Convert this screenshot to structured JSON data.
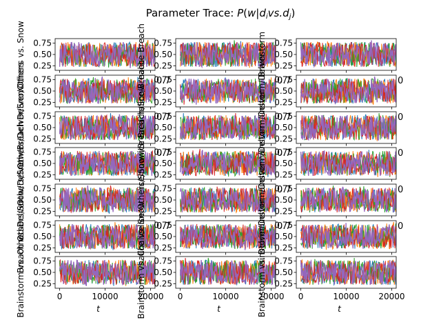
{
  "title": "Parameter Trace: P(w | d_i vs. d_j)",
  "title_parts": {
    "prefix": "Parameter Trace: ",
    "P": "P",
    "open": "(",
    "w": "w",
    "bar": "|",
    "d": "d",
    "i": "i",
    "vs": "vs.",
    "d2": "d",
    "j": "j",
    "close": ")"
  },
  "colors": {
    "series": [
      "#1f77b4",
      "#ff7f0e",
      "#2ca02c",
      "#d62728",
      "#9467bd"
    ],
    "axis": "#000000",
    "background": "#ffffff"
  },
  "chart_data": {
    "type": "line",
    "layout": "7x3 grid of subplots",
    "xlabel": "t",
    "xlim": [
      -1000,
      21000
    ],
    "ylim": [
      0.15,
      0.85
    ],
    "x_ticks": [
      0,
      10000,
      20000
    ],
    "y_ticks": [
      0.25,
      0.5,
      0.75
    ],
    "x_tick_labels": [
      "0",
      "10000",
      "20000"
    ],
    "y_tick_labels": [
      "0.25",
      "0.50",
      "0.75"
    ],
    "x_range_of_samples": [
      0,
      21000
    ],
    "series_per_panel": 5,
    "trace_mean_approx": 0.5,
    "trace_spread_approx": [
      0.2,
      0.82
    ],
    "panels": [
      {
        "ylabel": "Others vs. Snow",
        "fragment": ""
      },
      {
        "ylabel": "Chalice Breach",
        "fragment": ""
      },
      {
        "ylabel": "Brainstorm",
        "fragment": ""
      },
      {
        "ylabel": "Delver/Others",
        "fragment": "0.7"
      },
      {
        "ylabel": "Chalice/Breach",
        "fragment": "0.7"
      },
      {
        "ylabel": "Brainstorm/Delver",
        "fragment": "0"
      },
      {
        "ylabel": "Others/Delver/Snow",
        "fragment": "0.7"
      },
      {
        "ylabel": "Chalice Breach/Snow",
        "fragment": "0.7"
      },
      {
        "ylabel": "Brainstorm/Delver",
        "fragment": "0"
      },
      {
        "ylabel": "Others/Snow/Breach",
        "fragment": "0.7"
      },
      {
        "ylabel": "Chalice/Snow/Breach",
        "fragment": "0.7"
      },
      {
        "ylabel": "Brainstorm/Delver",
        "fragment": "0"
      },
      {
        "ylabel": "Others/Snow/Delver",
        "fragment": ""
      },
      {
        "ylabel": "Chalice/Others/Snow",
        "fragment": "0.7"
      },
      {
        "ylabel": "Brainstorm/Delver",
        "fragment": "0"
      },
      {
        "ylabel": "Breach vs. Delver",
        "fragment": "0.7"
      },
      {
        "ylabel": "Chalice vs. Snow",
        "fragment": "0.7"
      },
      {
        "ylabel": "Brainstorm/Delver",
        "fragment": "0"
      },
      {
        "ylabel": "Brainstorm vs. Others",
        "fragment": ""
      },
      {
        "ylabel": "Brainstorm vs. Chalice",
        "fragment": ""
      },
      {
        "ylabel": "Brainstorm vs. Delver",
        "fragment": ""
      }
    ]
  }
}
